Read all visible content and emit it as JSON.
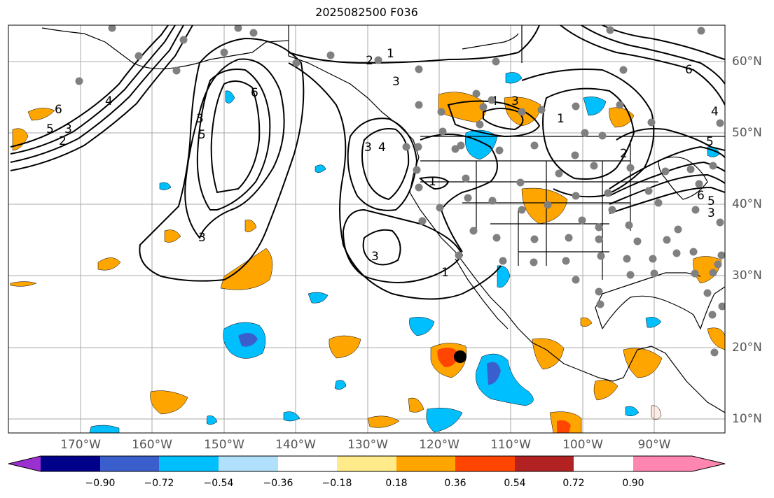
{
  "title": "2025082500 F036",
  "lon_labels": [
    "170°W",
    "160°W",
    "150°W",
    "140°W",
    "130°W",
    "120°W",
    "110°W",
    "100°W",
    "90°W"
  ],
  "lat_labels": [
    "60°N",
    "50°N",
    "40°N",
    "30°N",
    "20°N",
    "10°N"
  ],
  "colorbar": {
    "ticks": [
      "−0.90",
      "−0.72",
      "−0.54",
      "−0.36",
      "−0.18",
      "0.18",
      "0.36",
      "0.54",
      "0.72",
      "0.90"
    ],
    "colors": [
      "#9b30d0",
      "#00008b",
      "#3a5fcd",
      "#00bfff",
      "#b0e0fb",
      "#ffffff",
      "#ffeb8a",
      "#ffa500",
      "#ff4500",
      "#b22222",
      "#ff86b0"
    ]
  },
  "contour_labels": [
    "1",
    "2",
    "3",
    "4",
    "5",
    "6"
  ],
  "colors": {
    "land_line": "#000000",
    "grid": "#aaaaaa",
    "station": "#808080"
  }
}
